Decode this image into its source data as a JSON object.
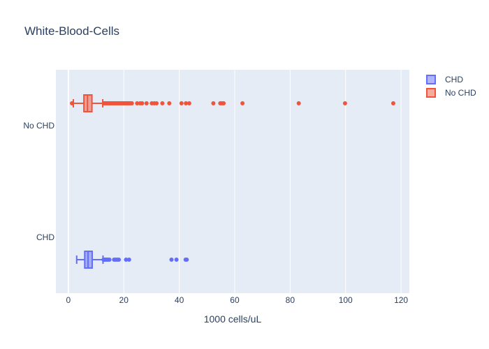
{
  "chart_data": {
    "type": "box",
    "orientation": "horizontal",
    "title": "White-Blood-Cells",
    "xlabel": "1000 cells/uL",
    "ylabel": "",
    "xlim": [
      -4.5,
      123
    ],
    "x_ticks": [
      0,
      20,
      40,
      60,
      80,
      100,
      120
    ],
    "grid": true,
    "legend_position": "top-right",
    "categories": [
      "CHD",
      "No CHD"
    ],
    "series": [
      {
        "name": "CHD",
        "category": "CHD",
        "color": "#636efa",
        "box_offset": -0.2,
        "min_whisker": 3.0,
        "q1": 5.9,
        "median": 7.1,
        "q3": 8.6,
        "max_whisker": 12.5,
        "outliers": [
          12.7,
          13.0,
          13.3,
          13.6,
          14.0,
          14.4,
          14.8,
          16.5,
          17.0,
          17.6,
          18.2,
          20.8,
          21.9,
          37.2,
          39.0,
          42.3,
          42.7
        ]
      },
      {
        "name": "No CHD",
        "category": "No CHD",
        "color": "#ef553b",
        "box_offset": 0.2,
        "min_whisker": 1.8,
        "q1": 5.6,
        "median": 6.9,
        "q3": 8.5,
        "max_whisker": 12.4,
        "outliers": [
          1.3,
          12.8,
          13.2,
          13.6,
          14.0,
          14.4,
          14.8,
          15.2,
          15.6,
          16.0,
          16.4,
          16.8,
          17.2,
          17.6,
          18.0,
          18.4,
          18.8,
          19.2,
          19.6,
          20.0,
          20.4,
          20.8,
          21.2,
          21.6,
          22.0,
          22.4,
          22.9,
          24.8,
          25.9,
          26.6,
          28.2,
          30.1,
          31.0,
          31.8,
          33.9,
          36.4,
          40.8,
          42.4,
          43.6,
          52.3,
          54.8,
          55.4,
          56.0,
          62.8,
          83.1,
          99.8,
          117.2
        ]
      }
    ]
  }
}
